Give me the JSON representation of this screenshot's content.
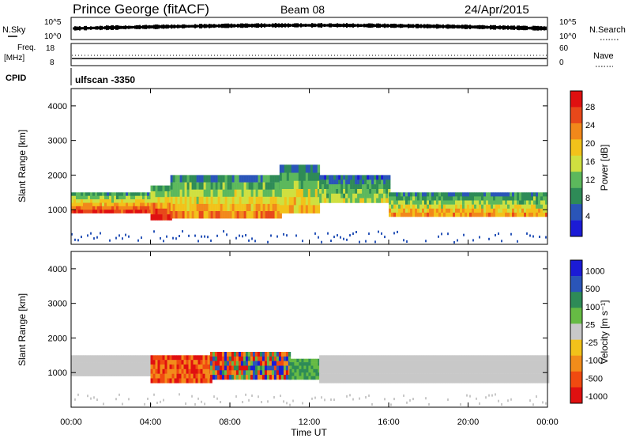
{
  "header": {
    "station": "Prince George (fitACF)",
    "beam": "Beam 08",
    "date": "24/Apr/2015"
  },
  "aux": {
    "nsky_label": "N.Sky",
    "nsky_ticks": [
      "10^5",
      "10^0"
    ],
    "nsearch_label": "N.Search",
    "nsearch_ticks": [
      "10^5",
      "10^0"
    ],
    "freq_label_top": "Freq.",
    "freq_label_bottom": "[MHz]",
    "freq_ticks": [
      "18",
      "8"
    ],
    "nave_label": "Nave",
    "nave_ticks": [
      "60",
      "0"
    ],
    "cpid_label": "CPID",
    "cpid_value": "ulfscan -3350"
  },
  "colors": {
    "power": [
      "#1b1bd6",
      "#2a55b8",
      "#2e8b57",
      "#5cb85c",
      "#cfe040",
      "#f2c21a",
      "#f2881a",
      "#e8481a",
      "#e01010"
    ],
    "velocity": [
      "#e01010",
      "#f04a10",
      "#f28c1a",
      "#f2c21a",
      "#c8c8c8",
      "#66bb44",
      "#2e8b57",
      "#2a55b8",
      "#1b1bd6"
    ]
  },
  "chart_data": [
    {
      "type": "heatmap",
      "title": "",
      "xlabel": "Time UT",
      "ylabel": "Slant Range [km]",
      "x_ticks": [
        "00:00",
        "04:00",
        "08:00",
        "12:00",
        "16:00",
        "20:00",
        "00:00"
      ],
      "xlim": [
        0,
        24
      ],
      "ylim": [
        0,
        4500
      ],
      "y_ticks": [
        1000,
        2000,
        3000,
        4000
      ],
      "colorbar": {
        "label": "Power [dB]",
        "range": [
          0,
          32
        ],
        "ticks": [
          "28",
          "24",
          "20",
          "16",
          "12",
          "8",
          "4"
        ]
      },
      "bands": [
        {
          "from": 0,
          "to": 4,
          "low": 900,
          "high": 1500,
          "level": 0.85
        },
        {
          "from": 4,
          "to": 5,
          "low": 700,
          "high": 1700,
          "level": 0.9
        },
        {
          "from": 5,
          "to": 10.5,
          "low": 750,
          "high": 2000,
          "level": 0.7
        },
        {
          "from": 10.5,
          "to": 12.5,
          "low": 900,
          "high": 2300,
          "level": 0.6
        },
        {
          "from": 12.5,
          "to": 16,
          "low": 1200,
          "high": 2000,
          "level": 0.45
        },
        {
          "from": 16,
          "to": 24,
          "low": 800,
          "high": 1500,
          "level": 0.65
        }
      ]
    },
    {
      "type": "heatmap",
      "title": "",
      "xlabel": "Time UT",
      "ylabel": "Slant Range [km]",
      "x_ticks": [
        "00:00",
        "04:00",
        "08:00",
        "12:00",
        "16:00",
        "20:00",
        "00:00"
      ],
      "xlim": [
        0,
        24
      ],
      "ylim": [
        0,
        4500
      ],
      "y_ticks": [
        1000,
        2000,
        3000,
        4000
      ],
      "colorbar": {
        "label": "Velocity [m s⁻¹]",
        "range": [
          -1000,
          1000
        ],
        "ticks": [
          "1000",
          "500",
          "100",
          "25",
          "-25",
          "-100",
          "-500",
          "-1000"
        ]
      },
      "bands": [
        {
          "from": 0,
          "to": 4,
          "low": 900,
          "high": 1500,
          "class": "ground"
        },
        {
          "from": 4,
          "to": 7,
          "low": 700,
          "high": 1500,
          "class": "negative"
        },
        {
          "from": 7,
          "to": 11,
          "low": 800,
          "high": 1600,
          "class": "mixed"
        },
        {
          "from": 11,
          "to": 12.5,
          "low": 800,
          "high": 1400,
          "class": "positive"
        },
        {
          "from": 12.5,
          "to": 24,
          "low": 700,
          "high": 1500,
          "class": "ground"
        }
      ]
    }
  ]
}
